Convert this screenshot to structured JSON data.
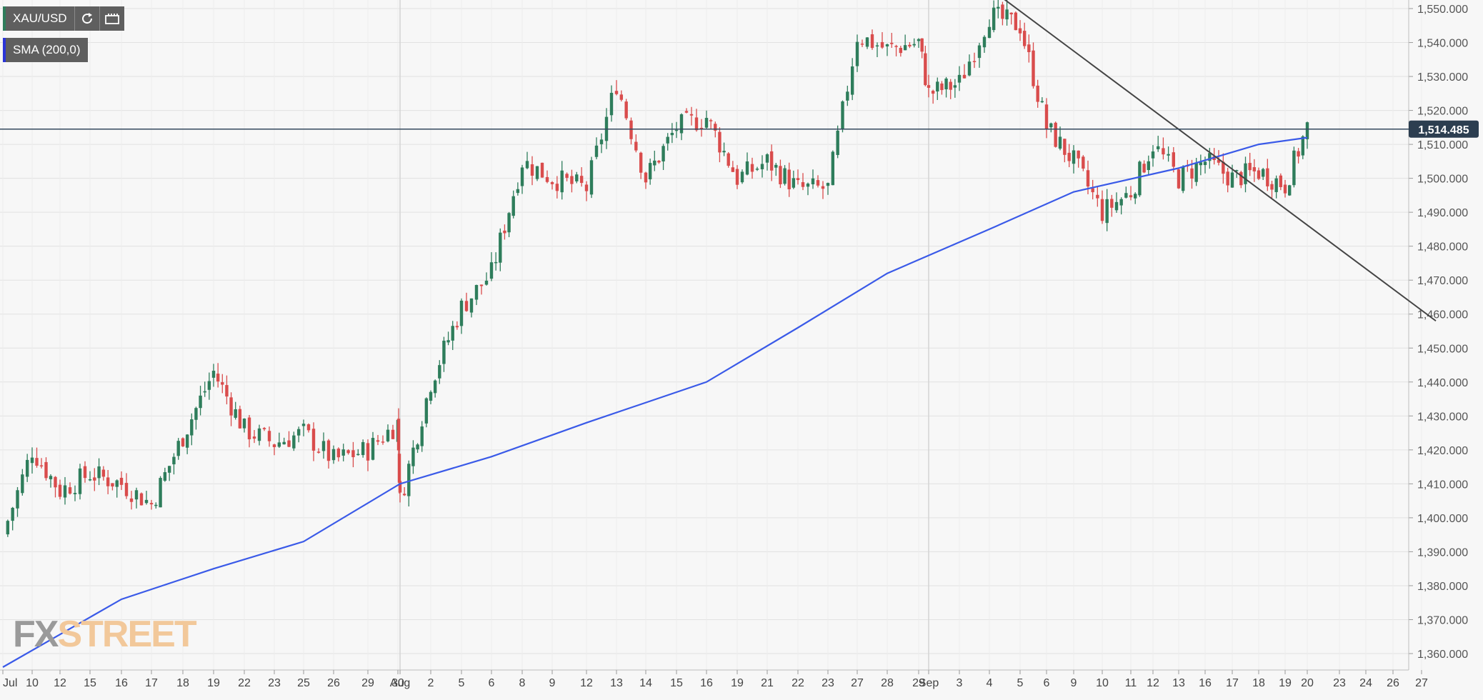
{
  "toolbar": {
    "symbol_label": "XAU/USD",
    "indicator_label": "SMA (200,0)",
    "symbol_color": "#2e7d5b",
    "indicator_color": "#2a34d8",
    "refresh_icon": "refresh-icon",
    "settings_icon": "chart-settings-icon"
  },
  "logo": {
    "part1": "FX",
    "part2": "STREET"
  },
  "colors": {
    "background": "#f7f7f7",
    "grid": "#e2e2e2",
    "up_candle": "#2e7d5b",
    "down_candle": "#d94c4c",
    "sma": "#3a5ae8",
    "trendline": "#444444",
    "price_line": "#34495e",
    "price_label_bg": "#2c3e50"
  },
  "chart_data": {
    "type": "candlestick",
    "instrument": "XAU/USD",
    "indicator": "SMA (200,0)",
    "current_price": 1514.485,
    "current_price_label": "1,514.485",
    "ylim": [
      1355,
      1560
    ],
    "y_ticks": [
      "1,360.000",
      "1,370.000",
      "1,380.000",
      "1,390.000",
      "1,400.000",
      "1,410.000",
      "1,420.000",
      "1,430.000",
      "1,440.000",
      "1,450.000",
      "1,460.000",
      "1,470.000",
      "1,480.000",
      "1,490.000",
      "1,500.000",
      "1,510.000",
      "1,520.000",
      "1,530.000",
      "1,540.000",
      "1,550.000"
    ],
    "y_tick_values": [
      1360,
      1370,
      1380,
      1390,
      1400,
      1410,
      1420,
      1430,
      1440,
      1450,
      1460,
      1470,
      1480,
      1490,
      1500,
      1510,
      1520,
      1530,
      1540,
      1550
    ],
    "x_labels": [
      "Jul",
      "10",
      "12",
      "15",
      "16",
      "17",
      "18",
      "19",
      "22",
      "23",
      "25",
      "26",
      "29",
      "30",
      "Aug",
      "2",
      "5",
      "6",
      "8",
      "9",
      "12",
      "13",
      "14",
      "15",
      "16",
      "19",
      "21",
      "22",
      "23",
      "27",
      "28",
      "29",
      "Sep",
      "3",
      "4",
      "5",
      "6",
      "9",
      "10",
      "11",
      "12",
      "13",
      "16",
      "17",
      "18",
      "19",
      "20",
      "23",
      "24",
      "26",
      "27"
    ],
    "grid_major": [
      "Aug",
      "Sep"
    ],
    "grid": true,
    "price_path": [
      {
        "day": "Jul 9",
        "price": 1395
      },
      {
        "day": "Jul 10",
        "price": 1420
      },
      {
        "day": "Jul 12",
        "price": 1408
      },
      {
        "day": "Jul 15",
        "price": 1413
      },
      {
        "day": "Jul 16",
        "price": 1410
      },
      {
        "day": "Jul 17",
        "price": 1404
      },
      {
        "day": "Jul 18",
        "price": 1424
      },
      {
        "day": "Jul 19",
        "price": 1443
      },
      {
        "day": "Jul 22",
        "price": 1426
      },
      {
        "day": "Jul 23",
        "price": 1422
      },
      {
        "day": "Jul 25",
        "price": 1425
      },
      {
        "day": "Jul 26",
        "price": 1417
      },
      {
        "day": "Jul 29",
        "price": 1420
      },
      {
        "day": "Jul 30",
        "price": 1428
      },
      {
        "day": "Aug 1",
        "price": 1405
      },
      {
        "day": "Aug 2",
        "price": 1440
      },
      {
        "day": "Aug 5",
        "price": 1462
      },
      {
        "day": "Aug 6",
        "price": 1472
      },
      {
        "day": "Aug 8",
        "price": 1505
      },
      {
        "day": "Aug 9",
        "price": 1500
      },
      {
        "day": "Aug 12",
        "price": 1497
      },
      {
        "day": "Aug 13",
        "price": 1528
      },
      {
        "day": "Aug 14",
        "price": 1500
      },
      {
        "day": "Aug 15",
        "price": 1515
      },
      {
        "day": "Aug 16",
        "price": 1518
      },
      {
        "day": "Aug 19",
        "price": 1500
      },
      {
        "day": "Aug 21",
        "price": 1505
      },
      {
        "day": "Aug 22",
        "price": 1497
      },
      {
        "day": "Aug 23",
        "price": 1497
      },
      {
        "day": "Aug 27",
        "price": 1542
      },
      {
        "day": "Aug 28",
        "price": 1538
      },
      {
        "day": "Aug 29",
        "price": 1540
      },
      {
        "day": "Sep 2",
        "price": 1525
      },
      {
        "day": "Sep 3",
        "price": 1528
      },
      {
        "day": "Sep 4",
        "price": 1548
      },
      {
        "day": "Sep 5",
        "price": 1545
      },
      {
        "day": "Sep 6",
        "price": 1515
      },
      {
        "day": "Sep 9",
        "price": 1505
      },
      {
        "day": "Sep 10",
        "price": 1490
      },
      {
        "day": "Sep 11",
        "price": 1496
      },
      {
        "day": "Sep 12",
        "price": 1510
      },
      {
        "day": "Sep 13",
        "price": 1500
      },
      {
        "day": "Sep 16",
        "price": 1505
      },
      {
        "day": "Sep 17",
        "price": 1500
      },
      {
        "day": "Sep 18",
        "price": 1502
      },
      {
        "day": "Sep 19",
        "price": 1498
      },
      {
        "day": "Sep 20",
        "price": 1515
      }
    ],
    "sma_200": [
      {
        "day": "Jul 9",
        "value": 1356
      },
      {
        "day": "Jul 16",
        "value": 1376
      },
      {
        "day": "Jul 19",
        "value": 1385
      },
      {
        "day": "Jul 25",
        "value": 1393
      },
      {
        "day": "Aug 1",
        "value": 1410
      },
      {
        "day": "Aug 6",
        "value": 1418
      },
      {
        "day": "Aug 12",
        "value": 1428
      },
      {
        "day": "Aug 16",
        "value": 1440
      },
      {
        "day": "Aug 22",
        "value": 1456
      },
      {
        "day": "Aug 28",
        "value": 1472
      },
      {
        "day": "Sep 4",
        "value": 1485
      },
      {
        "day": "Sep 9",
        "value": 1496
      },
      {
        "day": "Sep 13",
        "value": 1503
      },
      {
        "day": "Sep 18",
        "value": 1510
      },
      {
        "day": "Sep 20",
        "value": 1512
      }
    ],
    "trendline": {
      "from": {
        "day": "Sep 4",
        "price": 1556
      },
      "to": {
        "day": "Sep 27",
        "price": 1458
      }
    }
  }
}
